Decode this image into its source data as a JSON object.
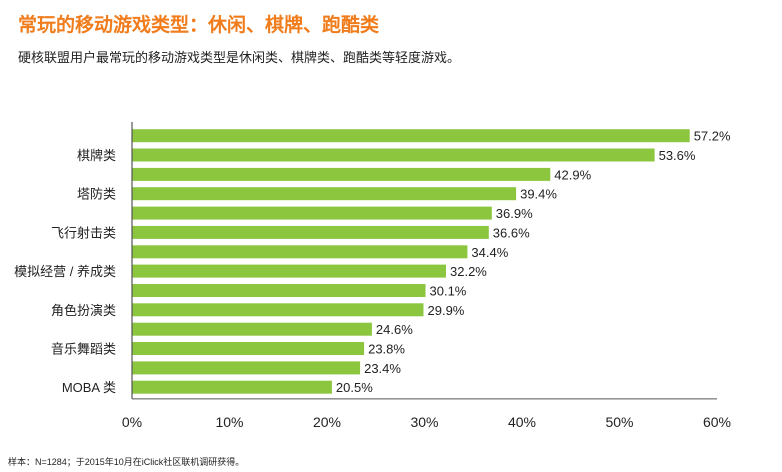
{
  "header": {
    "title": "常玩的移动游戏类型：休闲、棋牌、跑酷类",
    "subtitle": "硬核联盟用户最常玩的移动游戏类型是休闲类、棋牌类、跑酷类等轻度游戏。"
  },
  "footnote": "样本：N=1284；于2015年10月在iClick社区联机调研获得。",
  "colors": {
    "title": "#f07c1c",
    "bar": "#8cc63f",
    "axis": "#555555",
    "text": "#222222"
  },
  "chart_data": {
    "type": "bar",
    "orientation": "horizontal",
    "category_labels_shown": [
      "棋牌类",
      "塔防类",
      "飞行射击类",
      "模拟经营 / 养成类",
      "角色扮演类",
      "音乐舞蹈类",
      "MOBA 类"
    ],
    "category_label_rows": [
      2,
      4,
      6,
      8,
      10,
      12,
      14
    ],
    "values": [
      57.2,
      53.6,
      42.9,
      39.4,
      36.9,
      36.6,
      34.4,
      32.2,
      30.1,
      29.9,
      24.6,
      23.8,
      23.4,
      20.5
    ],
    "value_labels": [
      "57.2%",
      "53.6%",
      "42.9%",
      "39.4%",
      "36.9%",
      "36.6%",
      "34.4%",
      "32.2%",
      "30.1%",
      "29.9%",
      "24.6%",
      "23.8%",
      "23.4%",
      "20.5%"
    ],
    "xlim": [
      0,
      60
    ],
    "xticks": [
      0,
      10,
      20,
      30,
      40,
      50,
      60
    ],
    "xtick_labels": [
      "0%",
      "10%",
      "20%",
      "30%",
      "40%",
      "50%",
      "60%"
    ],
    "grid": false,
    "legend": "none"
  }
}
